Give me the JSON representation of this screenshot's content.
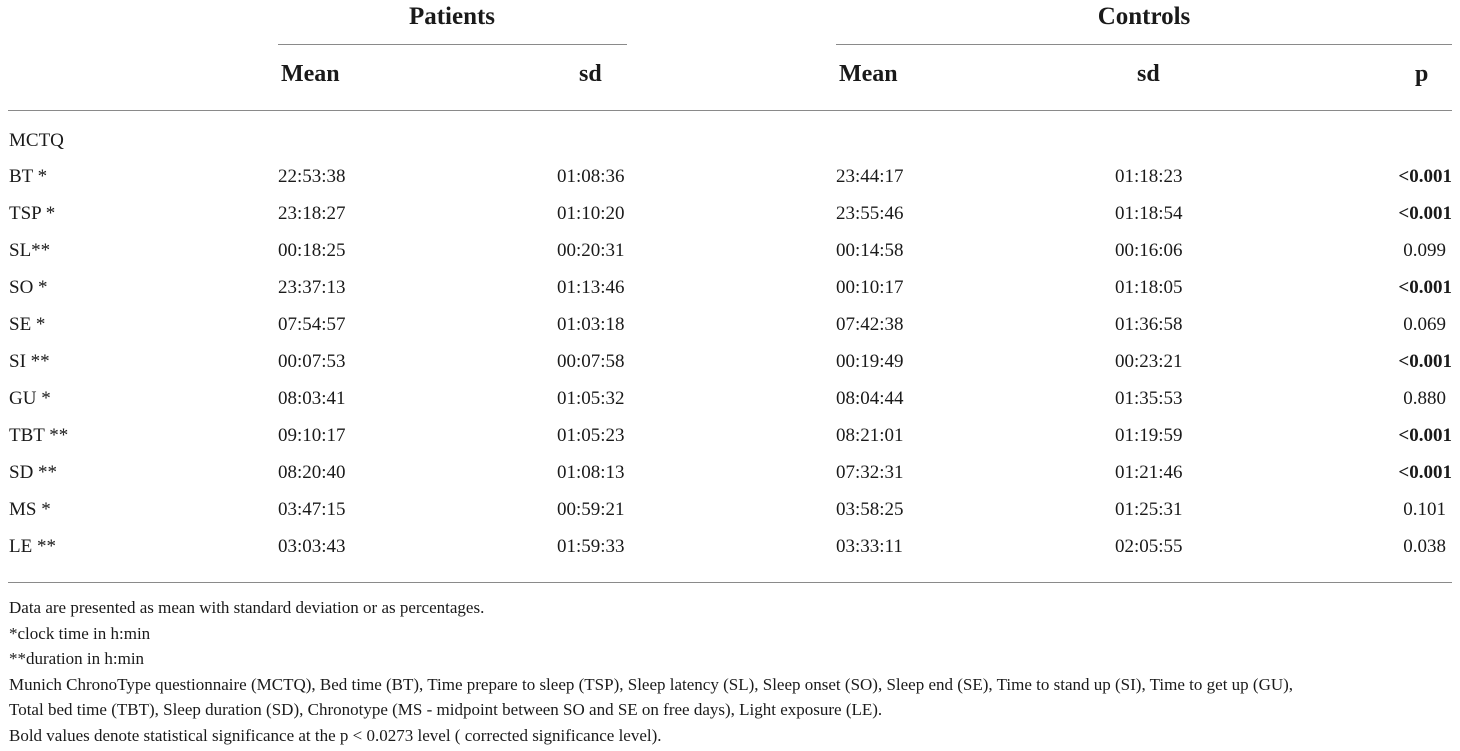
{
  "table": {
    "groups": {
      "patients": "Patients",
      "controls": "Controls"
    },
    "columns": {
      "patients_mean": "Mean",
      "patients_sd": "sd",
      "controls_mean": "Mean",
      "controls_sd": "sd",
      "p": "p"
    },
    "section_label": "MCTQ",
    "rows": [
      {
        "label": "BT *",
        "pmean": "22:53:38",
        "psd": "01:08:36",
        "cmean": "23:44:17",
        "csd": "01:18:23",
        "p": "<0.001",
        "significant": true
      },
      {
        "label": "TSP *",
        "pmean": "23:18:27",
        "psd": "01:10:20",
        "cmean": "23:55:46",
        "csd": "01:18:54",
        "p": "<0.001",
        "significant": true
      },
      {
        "label": "SL**",
        "pmean": "00:18:25",
        "psd": "00:20:31",
        "cmean": "00:14:58",
        "csd": "00:16:06",
        "p": "0.099",
        "significant": false
      },
      {
        "label": "SO *",
        "pmean": "23:37:13",
        "psd": "01:13:46",
        "cmean": "00:10:17",
        "csd": "01:18:05",
        "p": "<0.001",
        "significant": true
      },
      {
        "label": "SE *",
        "pmean": "07:54:57",
        "psd": "01:03:18",
        "cmean": "07:42:38",
        "csd": "01:36:58",
        "p": "0.069",
        "significant": false
      },
      {
        "label": "SI **",
        "pmean": "00:07:53",
        "psd": "00:07:58",
        "cmean": "00:19:49",
        "csd": "00:23:21",
        "p": "<0.001",
        "significant": true
      },
      {
        "label": "GU *",
        "pmean": "08:03:41",
        "psd": "01:05:32",
        "cmean": "08:04:44",
        "csd": "01:35:53",
        "p": "0.880",
        "significant": false
      },
      {
        "label": "TBT **",
        "pmean": "09:10:17",
        "psd": "01:05:23",
        "cmean": "08:21:01",
        "csd": "01:19:59",
        "p": "<0.001",
        "significant": true
      },
      {
        "label": "SD **",
        "pmean": "08:20:40",
        "psd": "01:08:13",
        "cmean": "07:32:31",
        "csd": "01:21:46",
        "p": "<0.001",
        "significant": true
      },
      {
        "label": "MS *",
        "pmean": "03:47:15",
        "psd": "00:59:21",
        "cmean": "03:58:25",
        "csd": "01:25:31",
        "p": "0.101",
        "significant": false
      },
      {
        "label": "LE **",
        "pmean": "03:03:43",
        "psd": "01:59:33",
        "cmean": "03:33:11",
        "csd": "02:05:55",
        "p": "0.038",
        "significant": false
      }
    ]
  },
  "notes": [
    "Data are presented as mean with standard deviation or as percentages.",
    "*clock time in h:min",
    "**duration in h:min",
    "Munich ChronoType questionnaire (MCTQ), Bed time (BT), Time prepare to sleep (TSP), Sleep latency (SL), Sleep onset (SO), Sleep end (SE), Time to stand up (SI), Time to get up (GU),",
    "Total bed time (TBT), Sleep duration (SD), Chronotype (MS - midpoint between SO and SE on free days), Light exposure (LE).",
    "Bold values denote statistical significance at the p < 0.0273 level ( corrected significance level)."
  ]
}
